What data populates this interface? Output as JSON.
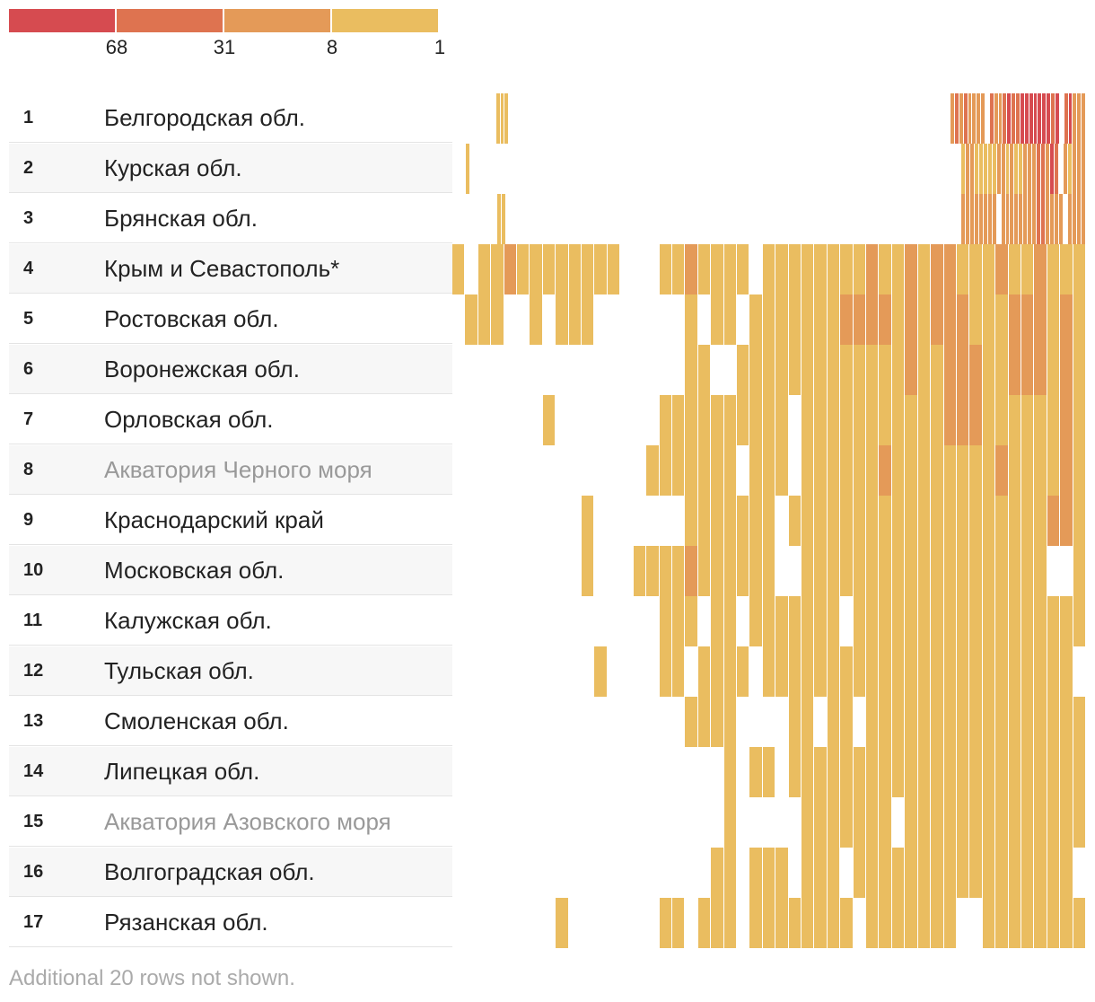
{
  "chart_data": {
    "type": "heatmap",
    "legend": {
      "colors": [
        "#d64b50",
        "#de7350",
        "#e49a58",
        "#eabd60"
      ],
      "ticks": [
        "68",
        "31",
        "8",
        "1"
      ]
    },
    "color_scale": {
      "1": "#eabd60",
      "2": "#e49a58",
      "3": "#de7350",
      "4": "#d64b50"
    },
    "rows": [
      {
        "rank": "1",
        "name": "Белгородская обл.",
        "muted": false,
        "cells": "0000000000111000000000000000000000000000000000000000000000000000000000000000000000000000000000000000000000000000002323222203223433444444434034222"
      },
      {
        "rank": "2",
        "name": "Курская обл.",
        "muted": false,
        "cells": "0001000000000000000000000000000000000000000000000000000000000000000000000000000000000000000000000000000000000000001221111122121122233243021222"
      },
      {
        "rank": "3",
        "name": "Брянская обл.",
        "muted": false,
        "cells": "0000000000110000000000000000000000000000000000000000000000000000000000000000000000000000000000000000000000000000002222222202222222233222202222"
      },
      {
        "rank": "4",
        "name": "Крым и Севастополь*",
        "muted": false,
        "cells": "1011211111111000112111101111111121121221112112111"
      },
      {
        "rank": "5",
        "name": "Ростовская обл.",
        "muted": false,
        "cells": "0111001011100000001011011111112222121222111222121"
      },
      {
        "rank": "6",
        "name": "Воронежская обл.",
        "muted": false,
        "cells": "0000000000000000001100111111111111121122211222121"
      },
      {
        "rank": "7",
        "name": "Орловская обл.",
        "muted": false,
        "cells": "0000000100000000111111111101111111111122211111121"
      },
      {
        "rank": "8",
        "name": "Акватория Черного моря",
        "muted": true,
        "cells": "0000000000000001111111011101111112111111112111121"
      },
      {
        "rank": "9",
        "name": "Краснодарский край",
        "muted": false,
        "cells": "0000000000100000001111111011111111111111111111221"
      },
      {
        "rank": "10",
        "name": "Московская обл.",
        "muted": false,
        "cells": "0000000000100011112111111001111111111111111111001"
      },
      {
        "rank": "11",
        "name": "Калужская обл.",
        "muted": false,
        "cells": "0000000000000000111011011111110111111111111111111"
      },
      {
        "rank": "12",
        "name": "Тульская обл.",
        "muted": false,
        "cells": "0000000000010000110111101111111111111111111111110"
      },
      {
        "rank": "13",
        "name": "Смоленская обл.",
        "muted": false,
        "cells": "0000000000000000001111000011011011111111111111111"
      },
      {
        "rank": "14",
        "name": "Липецкая обл.",
        "muted": false,
        "cells": "0000000000000000000001011011111111111111111111111"
      },
      {
        "rank": "15",
        "name": "Акватория Азовского моря",
        "muted": true,
        "cells": "0000000000000000000001000001111111011111111111111"
      },
      {
        "rank": "16",
        "name": "Волгоградская обл.",
        "muted": false,
        "cells": "0000000000000000000011011101110111111111111111110"
      },
      {
        "rank": "17",
        "name": "Рязанская обл.",
        "muted": false,
        "cells": "0000000010000000110111011111111011111110011111111"
      }
    ]
  },
  "footer": {
    "note": "Additional 20 rows not shown."
  }
}
